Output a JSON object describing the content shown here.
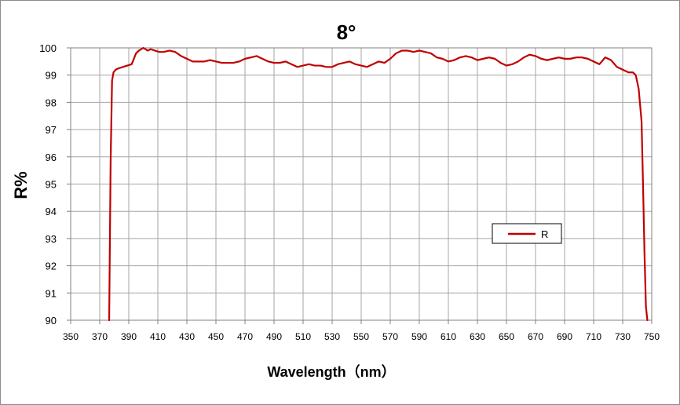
{
  "chart_data": {
    "type": "line",
    "title": "8°",
    "xlabel": "Wavelength（nm）",
    "ylabel": "R%",
    "xlim": [
      350,
      750
    ],
    "ylim": [
      90,
      100
    ],
    "x_ticks": [
      "350",
      "370",
      "390",
      "410",
      "430",
      "450",
      "470",
      "490",
      "510",
      "530",
      "550",
      "570",
      "590",
      "610",
      "630",
      "650",
      "670",
      "690",
      "710",
      "730",
      "750"
    ],
    "y_ticks": [
      "90",
      "91",
      "92",
      "93",
      "94",
      "95",
      "96",
      "97",
      "98",
      "99",
      "100"
    ],
    "grid": true,
    "legend": {
      "position": "right-center",
      "entries": [
        "R"
      ]
    },
    "colors": {
      "series": "#c00000",
      "grid": "#a6a6a6",
      "axis": "#808080"
    },
    "series": [
      {
        "name": "R",
        "x": [
          376.5,
          377.5,
          378.5,
          379.5,
          381,
          383,
          386,
          389,
          392,
          395,
          397,
          400,
          403,
          405,
          408,
          411,
          414,
          418,
          422,
          426,
          430,
          434,
          438,
          442,
          446,
          450,
          454,
          458,
          462,
          466,
          470,
          474,
          478,
          482,
          486,
          490,
          494,
          498,
          502,
          506,
          510,
          514,
          518,
          522,
          526,
          530,
          534,
          538,
          542,
          546,
          550,
          554,
          558,
          562,
          566,
          570,
          574,
          578,
          582,
          586,
          590,
          594,
          598,
          602,
          606,
          610,
          614,
          618,
          622,
          626,
          630,
          634,
          638,
          642,
          646,
          650,
          654,
          658,
          662,
          666,
          670,
          674,
          678,
          682,
          686,
          690,
          694,
          698,
          702,
          706,
          710,
          714,
          718,
          722,
          726,
          730,
          734,
          737,
          739,
          741,
          743,
          744,
          745,
          746,
          747
        ],
        "y": [
          90.0,
          95.8,
          98.8,
          99.1,
          99.2,
          99.25,
          99.3,
          99.35,
          99.4,
          99.8,
          99.9,
          100.0,
          99.9,
          99.95,
          99.9,
          99.85,
          99.85,
          99.9,
          99.85,
          99.7,
          99.6,
          99.5,
          99.5,
          99.5,
          99.55,
          99.5,
          99.45,
          99.45,
          99.45,
          99.5,
          99.6,
          99.65,
          99.7,
          99.6,
          99.5,
          99.45,
          99.45,
          99.5,
          99.4,
          99.3,
          99.35,
          99.4,
          99.35,
          99.35,
          99.3,
          99.3,
          99.4,
          99.45,
          99.5,
          99.4,
          99.35,
          99.3,
          99.4,
          99.5,
          99.45,
          99.6,
          99.8,
          99.9,
          99.9,
          99.85,
          99.9,
          99.85,
          99.8,
          99.65,
          99.6,
          99.5,
          99.55,
          99.65,
          99.7,
          99.65,
          99.55,
          99.6,
          99.65,
          99.6,
          99.45,
          99.35,
          99.4,
          99.5,
          99.65,
          99.75,
          99.7,
          99.6,
          99.55,
          99.6,
          99.65,
          99.6,
          99.6,
          99.65,
          99.65,
          99.6,
          99.5,
          99.4,
          99.65,
          99.55,
          99.3,
          99.2,
          99.1,
          99.1,
          99.0,
          98.5,
          97.3,
          95.0,
          92.5,
          90.5,
          90.0
        ]
      }
    ]
  }
}
